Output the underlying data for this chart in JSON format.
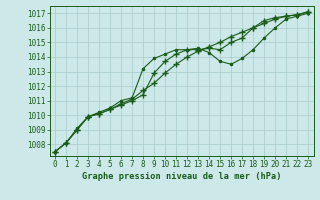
{
  "xlabel": "Graphe pression niveau de la mer (hPa)",
  "background_color": "#cce8e8",
  "grid_color": "#aacccc",
  "line_color": "#1a5c1a",
  "xlim": [
    -0.5,
    23.5
  ],
  "ylim": [
    1007.2,
    1017.5
  ],
  "yticks": [
    1008,
    1009,
    1010,
    1011,
    1012,
    1013,
    1014,
    1015,
    1016,
    1017
  ],
  "xticks": [
    0,
    1,
    2,
    3,
    4,
    5,
    6,
    7,
    8,
    9,
    10,
    11,
    12,
    13,
    14,
    15,
    16,
    17,
    18,
    19,
    20,
    21,
    22,
    23
  ],
  "series": [
    {
      "y": [
        1007.5,
        1008.1,
        1009.0,
        1009.9,
        1010.1,
        1010.4,
        1010.7,
        1011.0,
        1011.4,
        1012.9,
        1013.7,
        1014.2,
        1014.5,
        1014.5,
        1014.6,
        1014.5,
        1015.0,
        1015.3,
        1016.0,
        1016.5,
        1016.7,
        1016.8,
        1016.9,
        1017.1
      ],
      "marker": "+",
      "markersize": 4,
      "lw": 0.8,
      "mew": 1.0
    },
    {
      "y": [
        1007.5,
        1008.1,
        1009.0,
        1009.9,
        1010.1,
        1010.4,
        1010.8,
        1011.1,
        1011.7,
        1012.2,
        1012.9,
        1013.5,
        1014.0,
        1014.4,
        1014.7,
        1015.0,
        1015.4,
        1015.7,
        1016.0,
        1016.3,
        1016.6,
        1016.8,
        1016.9,
        1017.1
      ],
      "marker": "+",
      "markersize": 4,
      "lw": 0.8,
      "mew": 1.0
    },
    {
      "y": [
        1007.5,
        1008.1,
        1009.1,
        1009.9,
        1010.2,
        1010.5,
        1011.0,
        1011.2,
        1013.2,
        1013.9,
        1014.2,
        1014.5,
        1014.5,
        1014.6,
        1014.3,
        1013.7,
        1013.5,
        1013.9,
        1014.5,
        1015.3,
        1016.0,
        1016.6,
        1016.8,
        1017.0
      ],
      "marker": ".",
      "markersize": 3.5,
      "lw": 0.8,
      "mew": 0.8
    }
  ]
}
